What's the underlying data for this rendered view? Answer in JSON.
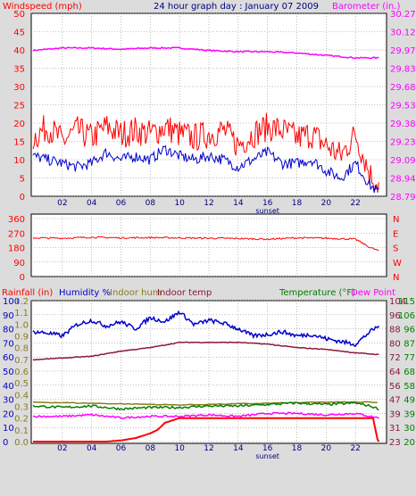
{
  "header": {
    "left_label": "Windspeed (mph)",
    "title": "24 hour graph day : January 07 2009",
    "right_label": "Barometer (in.)"
  },
  "bottom_header": {
    "rain": "Rainfall (in)",
    "humidity": "Humidity %",
    "indoor_hum": "Indoor hum",
    "indoor_temp": "Indoor temp",
    "temperature": "Temperature (°F)",
    "dew": "Dew Point"
  },
  "colors": {
    "wind_gust": "#ff0000",
    "wind_avg": "#0000cc",
    "barometer": "#ff00ff",
    "direction": "#ff0000",
    "rain": "#ff0000",
    "humidity": "#0000cc",
    "indoor_hum": "#8b7d1a",
    "indoor_temp": "#8b1a3a",
    "temperature": "#008000",
    "dew_point": "#ff00ff",
    "grid": "#808080",
    "plot_bg": "#ffffff",
    "frame_bg": "#dcdcdc"
  },
  "chart_data": [
    {
      "type": "line",
      "panel": "wind-barometer",
      "x_ticks": [
        "02",
        "04",
        "06",
        "08",
        "10",
        "12",
        "14",
        "16",
        "18",
        "20",
        "22"
      ],
      "x_extra_label": "sunset",
      "y_left": {
        "ticks": [
          "0",
          "5",
          "10",
          "15",
          "20",
          "25",
          "30",
          "35",
          "40",
          "45",
          "50"
        ],
        "ylim": [
          0,
          50
        ]
      },
      "y_right": {
        "ticks": [
          "28.79",
          "28.94",
          "29.09",
          "29.23",
          "29.38",
          "29.53",
          "29.68",
          "29.83",
          "29.97",
          "30.12",
          "30.27"
        ],
        "ylim": [
          28.79,
          30.27
        ]
      },
      "series": [
        {
          "name": "Windspeed (mph)",
          "axis": "left",
          "color_key": "wind_gust",
          "x": [
            0,
            1,
            2,
            3,
            4,
            5,
            6,
            7,
            8,
            9,
            10,
            11,
            12,
            13,
            14,
            15,
            16,
            17,
            18,
            19,
            20,
            21,
            22,
            23,
            23.6
          ],
          "values": [
            16,
            19,
            15,
            18,
            16,
            19,
            17,
            18,
            17,
            19,
            17,
            16,
            17,
            18,
            14,
            17,
            19,
            18,
            16,
            17,
            14,
            11,
            17,
            6,
            3
          ]
        },
        {
          "name": "Windspeed avg",
          "axis": "left",
          "color_key": "wind_avg",
          "x": [
            0,
            1,
            2,
            3,
            4,
            5,
            6,
            7,
            8,
            9,
            10,
            11,
            12,
            13,
            14,
            15,
            16,
            17,
            18,
            19,
            20,
            21,
            22,
            23,
            23.6
          ],
          "values": [
            11,
            10,
            9,
            8,
            9,
            12,
            10,
            11,
            10,
            13,
            11,
            10,
            11,
            10,
            8,
            10,
            12,
            9,
            9,
            10,
            7,
            5,
            9,
            3,
            1
          ]
        },
        {
          "name": "Barometer (in.)",
          "axis": "right",
          "color_key": "barometer",
          "x": [
            0,
            2,
            4,
            6,
            8,
            10,
            12,
            14,
            16,
            18,
            20,
            22,
            23.6
          ],
          "values": [
            29.97,
            29.99,
            29.99,
            29.98,
            29.99,
            29.99,
            29.97,
            29.96,
            29.96,
            29.95,
            29.93,
            29.91,
            29.91
          ]
        }
      ]
    },
    {
      "type": "line",
      "panel": "wind-direction",
      "y_left": {
        "ticks": [
          "0",
          "90",
          "180",
          "270",
          "360"
        ],
        "ylim": [
          0,
          360
        ]
      },
      "y_right_labels": [
        "N",
        "W",
        "S",
        "E",
        "N"
      ],
      "series": [
        {
          "name": "Wind direction",
          "color_key": "direction",
          "x": [
            0,
            2,
            4,
            6,
            8,
            10,
            12,
            14,
            16,
            18,
            20,
            22,
            23,
            23.6
          ],
          "values": [
            240,
            238,
            244,
            240,
            242,
            240,
            238,
            236,
            232,
            240,
            238,
            232,
            180,
            160
          ]
        }
      ]
    },
    {
      "type": "line",
      "panel": "rain-humidity-temperature",
      "x_ticks": [
        "02",
        "04",
        "06",
        "08",
        "10",
        "12",
        "14",
        "16",
        "18",
        "20",
        "22"
      ],
      "x_extra_label": "sunset",
      "y_rain": {
        "ticks": [
          "0.0",
          "0.1",
          "0.2",
          "0.3",
          "0.4",
          "0.5",
          "0.6",
          "0.7",
          "0.8",
          "0.9",
          "1.0",
          "1.1",
          "1.2"
        ],
        "ylim": [
          0,
          1.2
        ]
      },
      "y_humidity": {
        "ticks": [
          "0",
          "10",
          "20",
          "30",
          "40",
          "50",
          "60",
          "70",
          "80",
          "90",
          "100"
        ],
        "ylim": [
          0,
          100
        ]
      },
      "y_indoor_temp": {
        "ticks": [
          "23",
          "31",
          "39",
          "47",
          "56",
          "64",
          "72",
          "80",
          "88",
          "96",
          "104"
        ],
        "ylim": [
          23,
          104
        ]
      },
      "y_temperature": {
        "ticks": [
          "20",
          "30",
          "39",
          "49",
          "58",
          "68",
          "77",
          "87",
          "96",
          "106",
          "115"
        ],
        "ylim": [
          20,
          115
        ]
      },
      "series": [
        {
          "name": "Rainfall (in)",
          "axis": "rain",
          "color_key": "rain",
          "x": [
            0,
            5,
            6,
            7,
            8,
            8.5,
            9,
            10,
            12,
            14,
            16,
            18,
            20,
            22,
            23.2,
            23.5,
            23.6
          ],
          "values": [
            0,
            0,
            0.01,
            0.03,
            0.07,
            0.1,
            0.16,
            0.2,
            0.2,
            0.2,
            0.2,
            0.2,
            0.2,
            0.2,
            0.2,
            0.02,
            0
          ]
        },
        {
          "name": "Humidity %",
          "axis": "humidity",
          "color_key": "humidity",
          "x": [
            0,
            1,
            2,
            3,
            4,
            5,
            6,
            7,
            8,
            9,
            10,
            11,
            12,
            13,
            14,
            15,
            16,
            17,
            18,
            19,
            20,
            21,
            22,
            23,
            23.6
          ],
          "values": [
            78,
            77,
            75,
            83,
            86,
            82,
            85,
            80,
            88,
            85,
            92,
            83,
            86,
            84,
            80,
            75,
            76,
            78,
            75,
            76,
            73,
            71,
            69,
            78,
            82
          ]
        },
        {
          "name": "Indoor hum",
          "axis": "humidity",
          "color_key": "indoor_hum",
          "x": [
            0,
            5,
            10,
            15,
            20,
            23.6
          ],
          "values": [
            28,
            27,
            26,
            27,
            28,
            28
          ]
        },
        {
          "name": "Indoor temp",
          "axis": "indoor_temp",
          "color_key": "indoor_temp",
          "x": [
            0,
            2,
            4,
            6,
            8,
            10,
            12,
            14,
            16,
            18,
            20,
            22,
            23.6
          ],
          "values": [
            70,
            71,
            72,
            75,
            77,
            80,
            80,
            80,
            79,
            77,
            76,
            74,
            73
          ]
        },
        {
          "name": "Temperature (°F)",
          "axis": "temperature",
          "color_key": "temperature",
          "x": [
            0,
            2,
            4,
            6,
            8,
            10,
            12,
            14,
            16,
            18,
            20,
            22,
            23,
            23.6
          ],
          "values": [
            44,
            43,
            44,
            42,
            43,
            43,
            44,
            44,
            45,
            46,
            45,
            46,
            44,
            42
          ]
        },
        {
          "name": "Dew Point",
          "axis": "temperature",
          "color_key": "dew_point",
          "x": [
            0,
            2,
            4,
            6,
            8,
            10,
            12,
            14,
            16,
            18,
            20,
            22,
            23,
            23.6
          ],
          "values": [
            37,
            37,
            38,
            36,
            37,
            37,
            38,
            37,
            39,
            39,
            38,
            39,
            37,
            36
          ]
        }
      ]
    }
  ]
}
